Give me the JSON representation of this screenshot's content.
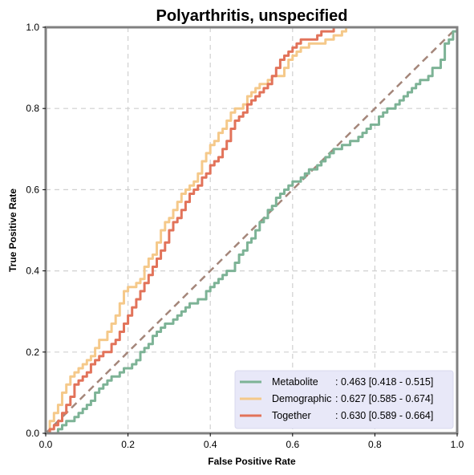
{
  "chart_data": {
    "type": "line",
    "title": "Polyarthritis, unspecified",
    "xlabel": "False Positive Rate",
    "ylabel": "True Positive Rate",
    "xlim": [
      0,
      1
    ],
    "ylim": [
      0,
      1
    ],
    "xticks": [
      "0.0",
      "0.2",
      "0.4",
      "0.6",
      "0.8",
      "1.0"
    ],
    "yticks": [
      "0.0",
      "0.2",
      "0.4",
      "0.6",
      "0.8",
      "1.0"
    ],
    "grid": true,
    "legend_position": "lower-right",
    "diagonal": {
      "x": [
        0,
        1
      ],
      "y": [
        0,
        1
      ],
      "color": "#a4867a",
      "style": "dashed"
    },
    "series": [
      {
        "name": "Metabolite",
        "label": ": 0.463 [0.418 - 0.515]",
        "color": "#7db396",
        "x": [
          0,
          0.02,
          0.03,
          0.04,
          0.05,
          0.06,
          0.07,
          0.08,
          0.09,
          0.1,
          0.11,
          0.12,
          0.13,
          0.14,
          0.15,
          0.16,
          0.17,
          0.18,
          0.19,
          0.2,
          0.21,
          0.22,
          0.23,
          0.24,
          0.25,
          0.26,
          0.27,
          0.28,
          0.29,
          0.3,
          0.31,
          0.32,
          0.33,
          0.34,
          0.35,
          0.36,
          0.37,
          0.38,
          0.39,
          0.4,
          0.41,
          0.42,
          0.43,
          0.44,
          0.45,
          0.46,
          0.47,
          0.48,
          0.49,
          0.5,
          0.51,
          0.52,
          0.53,
          0.54,
          0.55,
          0.56,
          0.57,
          0.58,
          0.59,
          0.6,
          0.61,
          0.62,
          0.63,
          0.64,
          0.65,
          0.66,
          0.67,
          0.68,
          0.69,
          0.7,
          0.71,
          0.72,
          0.73,
          0.74,
          0.75,
          0.76,
          0.77,
          0.78,
          0.79,
          0.8,
          0.81,
          0.82,
          0.83,
          0.84,
          0.85,
          0.86,
          0.87,
          0.88,
          0.89,
          0.9,
          0.91,
          0.92,
          0.93,
          0.94,
          0.95,
          0.96,
          0.97,
          0.98,
          0.99,
          1.0
        ],
        "y": [
          0,
          0,
          0.01,
          0.02,
          0.03,
          0.03,
          0.04,
          0.05,
          0.06,
          0.07,
          0.08,
          0.1,
          0.11,
          0.12,
          0.13,
          0.14,
          0.14,
          0.15,
          0.16,
          0.16,
          0.17,
          0.18,
          0.2,
          0.21,
          0.22,
          0.24,
          0.25,
          0.26,
          0.27,
          0.27,
          0.28,
          0.29,
          0.3,
          0.31,
          0.32,
          0.32,
          0.33,
          0.33,
          0.35,
          0.36,
          0.37,
          0.38,
          0.39,
          0.4,
          0.4,
          0.42,
          0.44,
          0.45,
          0.47,
          0.48,
          0.5,
          0.52,
          0.53,
          0.55,
          0.56,
          0.58,
          0.59,
          0.6,
          0.61,
          0.62,
          0.62,
          0.63,
          0.64,
          0.65,
          0.65,
          0.66,
          0.67,
          0.68,
          0.69,
          0.7,
          0.7,
          0.71,
          0.71,
          0.72,
          0.72,
          0.73,
          0.74,
          0.75,
          0.76,
          0.76,
          0.78,
          0.79,
          0.8,
          0.8,
          0.81,
          0.82,
          0.83,
          0.84,
          0.85,
          0.86,
          0.87,
          0.87,
          0.88,
          0.9,
          0.9,
          0.92,
          0.96,
          0.97,
          0.99,
          1.0
        ]
      },
      {
        "name": "Demographic",
        "label": ": 0.627 [0.585 - 0.674]",
        "color": "#f5c98a",
        "x": [
          0,
          0.01,
          0.02,
          0.03,
          0.04,
          0.05,
          0.06,
          0.07,
          0.08,
          0.09,
          0.1,
          0.11,
          0.12,
          0.13,
          0.14,
          0.15,
          0.16,
          0.17,
          0.18,
          0.19,
          0.2,
          0.21,
          0.22,
          0.23,
          0.24,
          0.25,
          0.26,
          0.27,
          0.28,
          0.29,
          0.3,
          0.31,
          0.32,
          0.33,
          0.34,
          0.35,
          0.36,
          0.37,
          0.38,
          0.39,
          0.4,
          0.41,
          0.42,
          0.43,
          0.44,
          0.45,
          0.46,
          0.47,
          0.48,
          0.49,
          0.5,
          0.51,
          0.52,
          0.53,
          0.54,
          0.55,
          0.56,
          0.57,
          0.58,
          0.59,
          0.6,
          0.61,
          0.62,
          0.63,
          0.64,
          0.65,
          0.66,
          0.67,
          0.68,
          0.69,
          0.7,
          0.71,
          0.72,
          0.73,
          0.74,
          0.75,
          0.76,
          0.77,
          0.78,
          0.79,
          0.8,
          0.81,
          0.82,
          0.83,
          0.84,
          0.85,
          0.86,
          0.87,
          0.88,
          0.89,
          0.9,
          0.91,
          0.92,
          0.93,
          0.94,
          0.95,
          0.96,
          0.97,
          0.98,
          0.99,
          1.0
        ],
        "y": [
          0,
          0.03,
          0.05,
          0.07,
          0.1,
          0.12,
          0.14,
          0.15,
          0.16,
          0.17,
          0.18,
          0.19,
          0.21,
          0.23,
          0.23,
          0.25,
          0.27,
          0.29,
          0.32,
          0.35,
          0.36,
          0.36,
          0.37,
          0.38,
          0.41,
          0.43,
          0.44,
          0.47,
          0.5,
          0.52,
          0.53,
          0.55,
          0.57,
          0.59,
          0.6,
          0.61,
          0.62,
          0.64,
          0.67,
          0.69,
          0.71,
          0.72,
          0.74,
          0.75,
          0.77,
          0.79,
          0.8,
          0.8,
          0.81,
          0.83,
          0.84,
          0.85,
          0.86,
          0.86,
          0.87,
          0.88,
          0.88,
          0.88,
          0.9,
          0.92,
          0.93,
          0.94,
          0.95,
          0.95,
          0.96,
          0.96,
          0.96,
          0.96,
          0.97,
          0.97,
          0.98,
          0.98,
          0.99,
          1.0,
          1.0,
          1.0,
          1.0,
          1.0,
          1.0,
          1.0,
          1.0,
          1.0,
          1.0,
          1.0,
          1.0,
          1.0,
          1.0,
          1.0,
          1.0,
          1.0,
          1.0,
          1.0,
          1.0,
          1.0,
          1.0,
          1.0,
          1.0,
          1.0,
          1.0,
          1.0,
          1.0
        ]
      },
      {
        "name": "Together",
        "label": ": 0.630 [0.589 - 0.664]",
        "color": "#e2735a",
        "x": [
          0,
          0.01,
          0.02,
          0.03,
          0.04,
          0.05,
          0.06,
          0.07,
          0.08,
          0.09,
          0.1,
          0.11,
          0.12,
          0.13,
          0.14,
          0.15,
          0.16,
          0.17,
          0.18,
          0.19,
          0.2,
          0.21,
          0.22,
          0.23,
          0.24,
          0.25,
          0.26,
          0.27,
          0.28,
          0.29,
          0.3,
          0.31,
          0.32,
          0.33,
          0.34,
          0.35,
          0.36,
          0.37,
          0.38,
          0.39,
          0.4,
          0.41,
          0.42,
          0.43,
          0.44,
          0.45,
          0.46,
          0.47,
          0.48,
          0.49,
          0.5,
          0.51,
          0.52,
          0.53,
          0.54,
          0.55,
          0.56,
          0.57,
          0.58,
          0.59,
          0.6,
          0.61,
          0.62,
          0.63,
          0.64,
          0.65,
          0.66,
          0.67,
          0.68,
          0.69,
          0.7,
          0.71,
          0.72,
          0.73,
          0.74,
          0.75,
          0.76,
          0.77,
          0.78,
          0.79,
          0.8,
          0.81,
          0.82,
          0.83,
          0.84,
          0.85,
          0.86,
          0.87,
          0.88,
          0.89,
          0.9,
          0.91,
          0.92,
          0.93,
          0.94,
          0.95,
          0.96,
          0.97,
          0.98,
          0.99,
          1.0
        ],
        "y": [
          0,
          0.01,
          0.02,
          0.03,
          0.05,
          0.07,
          0.09,
          0.12,
          0.13,
          0.14,
          0.15,
          0.17,
          0.18,
          0.19,
          0.2,
          0.2,
          0.22,
          0.23,
          0.25,
          0.27,
          0.29,
          0.31,
          0.33,
          0.35,
          0.37,
          0.39,
          0.41,
          0.43,
          0.45,
          0.47,
          0.5,
          0.52,
          0.53,
          0.55,
          0.57,
          0.59,
          0.6,
          0.61,
          0.63,
          0.64,
          0.66,
          0.67,
          0.68,
          0.7,
          0.72,
          0.75,
          0.77,
          0.78,
          0.79,
          0.81,
          0.82,
          0.83,
          0.84,
          0.85,
          0.86,
          0.88,
          0.9,
          0.92,
          0.93,
          0.94,
          0.95,
          0.96,
          0.97,
          0.97,
          0.97,
          0.97,
          0.98,
          0.99,
          0.99,
          0.99,
          1.0,
          1.0,
          1.0,
          1.0,
          1.0,
          1.0,
          1.0,
          1.0,
          1.0,
          1.0,
          1.0,
          1.0,
          1.0,
          1.0,
          1.0,
          1.0,
          1.0,
          1.0,
          1.0,
          1.0,
          1.0,
          1.0,
          1.0,
          1.0,
          1.0,
          1.0,
          1.0,
          1.0,
          1.0,
          1.0,
          1.0
        ]
      }
    ]
  }
}
